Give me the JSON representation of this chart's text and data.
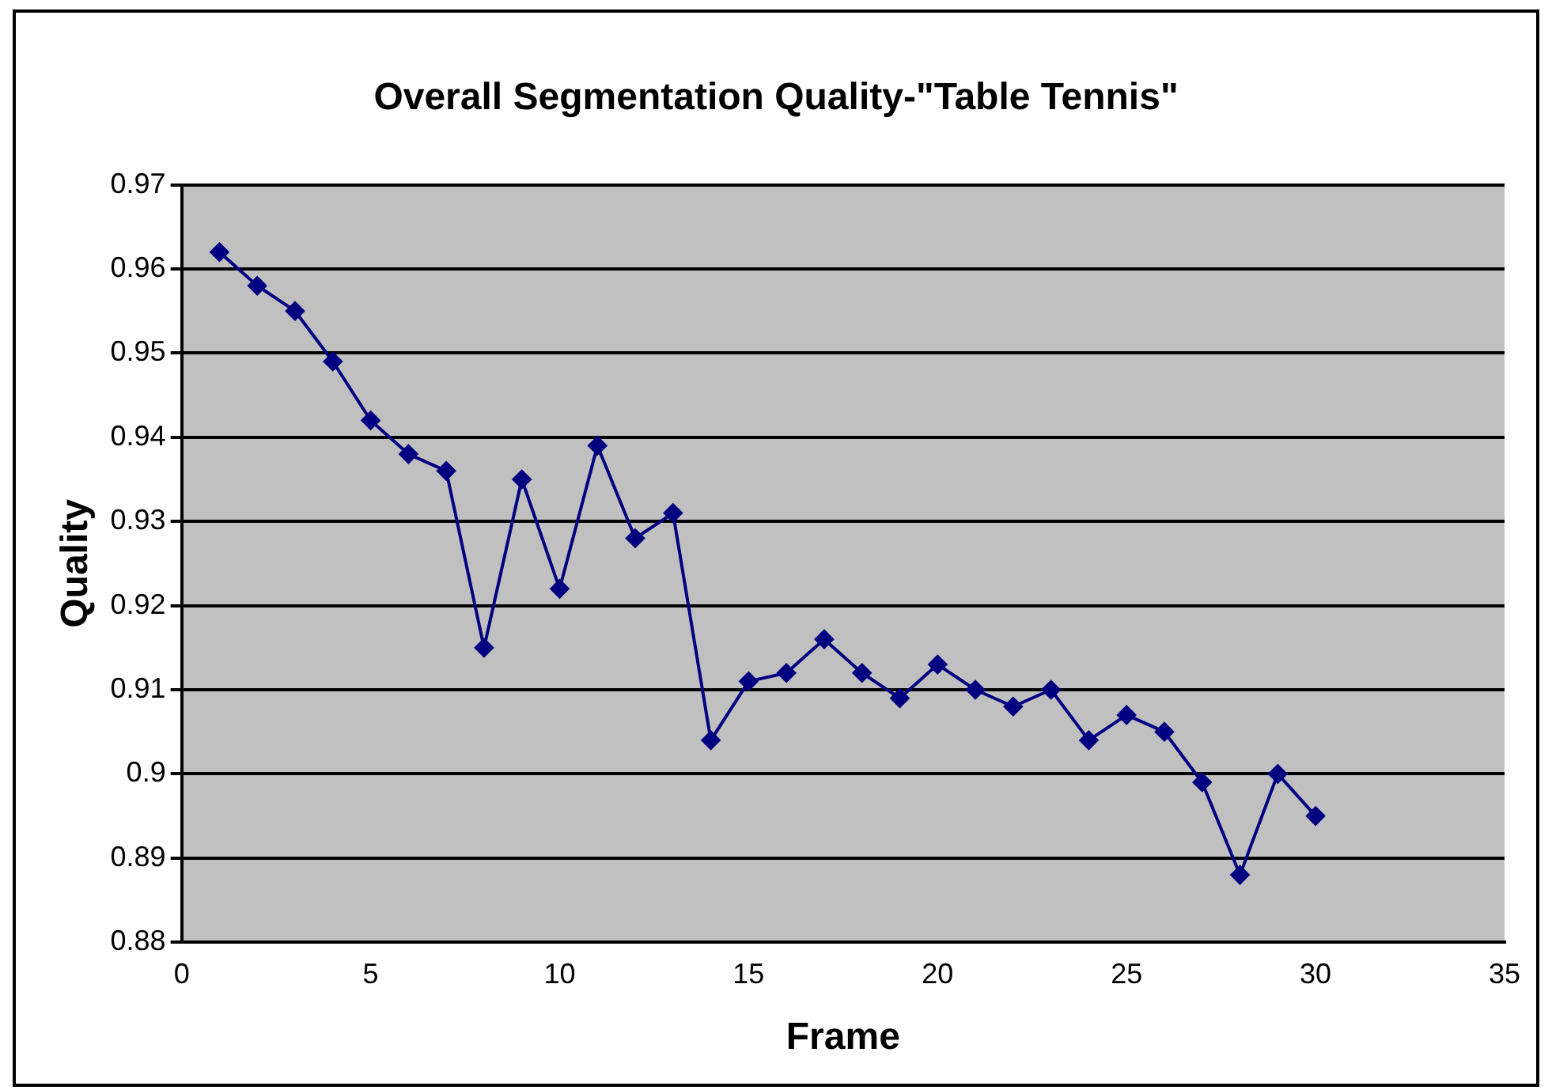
{
  "chart_data": {
    "type": "line",
    "title": "Overall Segmentation Quality-\"Table Tennis\"",
    "xlabel": "Frame",
    "ylabel": "Quality",
    "x": [
      1,
      2,
      3,
      4,
      5,
      6,
      7,
      8,
      9,
      10,
      11,
      12,
      13,
      14,
      15,
      16,
      17,
      18,
      19,
      20,
      21,
      22,
      23,
      24,
      25,
      26,
      27,
      28,
      29,
      30
    ],
    "series": [
      {
        "color": "#000080",
        "values": [
          0.962,
          0.958,
          0.955,
          0.949,
          0.942,
          0.938,
          0.936,
          0.915,
          0.935,
          0.922,
          0.939,
          0.928,
          0.931,
          0.904,
          0.911,
          0.912,
          0.916,
          0.912,
          0.909,
          0.913,
          0.91,
          0.908,
          0.91,
          0.904,
          0.907,
          0.905,
          0.899,
          0.888,
          0.9,
          0.895
        ]
      }
    ],
    "xlim": [
      0,
      35
    ],
    "xticks": [
      0,
      5,
      10,
      15,
      20,
      25,
      30,
      35
    ],
    "ylim": [
      0.88,
      0.97
    ],
    "yticks": [
      0.88,
      0.89,
      0.9,
      0.91,
      0.92,
      0.93,
      0.94,
      0.95,
      0.96,
      0.97
    ],
    "grid": "y",
    "legend": false,
    "marker": "diamond",
    "line_style": "solid"
  }
}
